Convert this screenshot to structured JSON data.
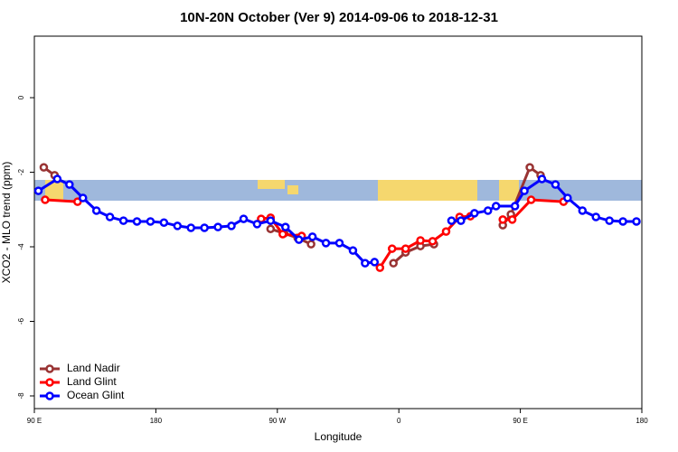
{
  "chart_data": {
    "type": "line",
    "title": "10N-20N October (Ver 9)   2014-09-06 to 2018-12-31",
    "xlabel": "Longitude",
    "ylabel": "XCO2 - MLO trend (ppm)",
    "xlim": [
      90,
      540
    ],
    "ylim": [
      -8.34,
      1.65
    ],
    "xticks": [
      {
        "value": 90,
        "label": "90 E"
      },
      180,
      {
        "value": 270,
        "label": "90 W"
      },
      {
        "value": 360,
        "label": "0"
      },
      {
        "value": 450,
        "label": "90 E"
      },
      {
        "value": 540,
        "label": "180"
      }
    ],
    "yticks": [
      0,
      -2,
      -4,
      -6,
      -8
    ],
    "legend": "lower left",
    "series": [
      {
        "name": "Land Nadir",
        "color": "#993333",
        "x": [
          97,
          105,
          null,
          265,
          275,
          285,
          295,
          null,
          356,
          365,
          376,
          386,
          null,
          437,
          443,
          457,
          465
        ],
        "values": [
          -1.87,
          -2.08,
          null,
          -3.52,
          -3.64,
          -3.76,
          -3.93,
          null,
          -4.44,
          -4.15,
          -3.98,
          -3.93,
          null,
          -3.42,
          -3.13,
          -1.87,
          -2.08
        ]
      },
      {
        "name": "Land Glint",
        "color": "#ff0000",
        "x": [
          98,
          122,
          null,
          258,
          265,
          274,
          288,
          null,
          346,
          355,
          365,
          376,
          385,
          395,
          405,
          413,
          null,
          437,
          444,
          458,
          482
        ],
        "values": [
          -2.74,
          -2.79,
          null,
          -3.25,
          -3.22,
          -3.66,
          -3.71,
          null,
          -4.56,
          -4.05,
          -4.05,
          -3.83,
          -3.85,
          -3.59,
          -3.2,
          -3.18,
          null,
          -3.27,
          -3.27,
          -2.74,
          -2.79
        ]
      },
      {
        "name": "Ocean Glint",
        "color": "#0000ff",
        "x": [
          93,
          107,
          116,
          126,
          136,
          146,
          156,
          166,
          176,
          186,
          196,
          206,
          216,
          226,
          236,
          245,
          255,
          265,
          276,
          286,
          296,
          306,
          316,
          326,
          335,
          342,
          null,
          399,
          406,
          416,
          426,
          432,
          446,
          453,
          466,
          476,
          485,
          496,
          506,
          516,
          526,
          536
        ],
        "values": [
          -2.5,
          -2.18,
          -2.33,
          -2.69,
          -3.03,
          -3.2,
          -3.3,
          -3.32,
          -3.32,
          -3.35,
          -3.44,
          -3.49,
          -3.49,
          -3.47,
          -3.44,
          -3.25,
          -3.39,
          -3.3,
          -3.47,
          -3.81,
          -3.73,
          -3.9,
          -3.9,
          -4.1,
          -4.44,
          -4.41,
          null,
          -3.3,
          -3.3,
          -3.1,
          -3.03,
          -2.91,
          -2.91,
          -2.5,
          -2.18,
          -2.33,
          -2.69,
          -3.03,
          -3.2,
          -3.3,
          -3.32,
          -3.32
        ]
      }
    ]
  }
}
